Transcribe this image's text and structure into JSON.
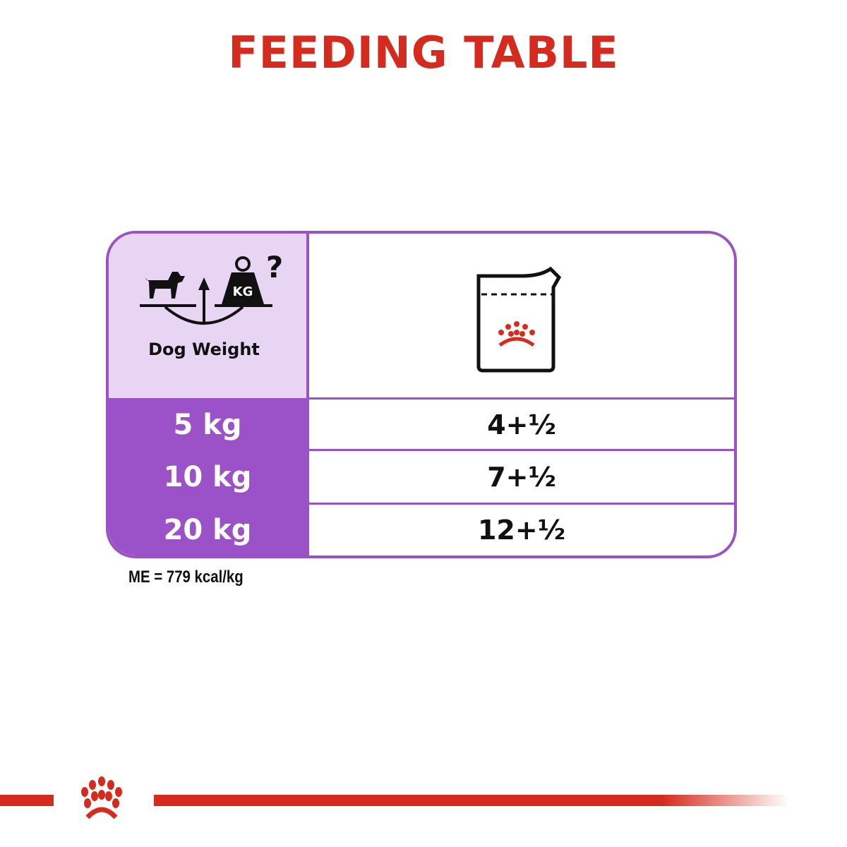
{
  "title": "FEEDING TABLE",
  "table": {
    "header": {
      "weight_label": "Dog Weight",
      "weight_icon": "dog-scale-kg-question-icon",
      "food_icon": "wet-food-pouch-crown-icon"
    },
    "rows": [
      {
        "weight": "5 kg",
        "amount": "4+½"
      },
      {
        "weight": "10 kg",
        "amount": "7+½"
      },
      {
        "weight": "20 kg",
        "amount": "12+½"
      }
    ]
  },
  "footnote": "ME = 779 kcal/kg",
  "colors": {
    "title_red": "#d52b1e",
    "purple": "#9b52c9",
    "light_purple": "#e7d5f3"
  },
  "footer": {
    "logo_icon": "royal-canin-crown-icon"
  }
}
